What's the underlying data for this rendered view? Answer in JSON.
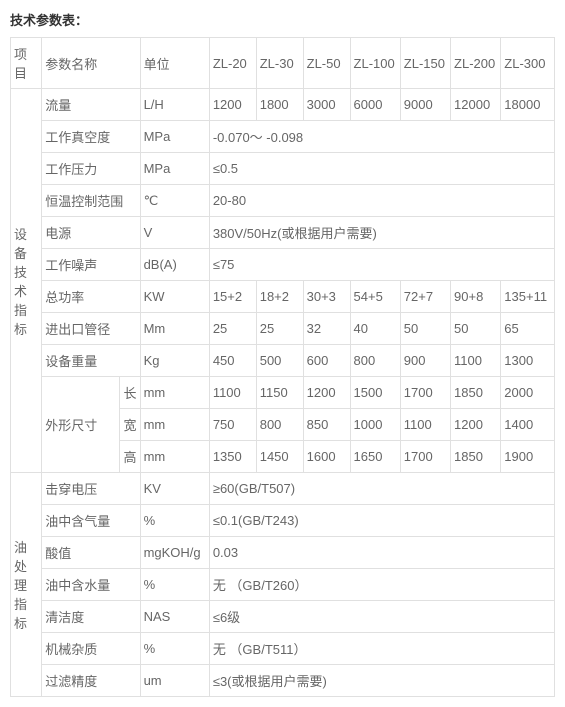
{
  "title": "技术参数表：",
  "header": {
    "project": "项目",
    "paramName": "参数名称",
    "unit": "单位",
    "models": [
      "ZL-20",
      "ZL-30",
      "ZL-50",
      "ZL-100",
      "ZL-150",
      "ZL-200",
      "ZL-300"
    ]
  },
  "group1": {
    "label": "设备技术指标",
    "rows": {
      "flow": {
        "name": "流量",
        "unit": "L/H",
        "v": [
          "1200",
          "1800",
          "3000",
          "6000",
          "9000",
          "12000",
          "18000"
        ]
      },
      "vac": {
        "name": "工作真空度",
        "unit": "MPa",
        "span": "-0.070～ -0.098"
      },
      "press": {
        "name": "工作压力",
        "unit": "MPa",
        "span": "≤0.5"
      },
      "temp": {
        "name": "恒温控制范围",
        "unit": "℃",
        "span": "20-80"
      },
      "power": {
        "name": "电源",
        "unit": "V",
        "span": "380V/50Hz(或根据用户需要)"
      },
      "noise": {
        "name": "工作噪声",
        "unit": "dB(A)",
        "span": "≤75"
      },
      "kw": {
        "name": "总功率",
        "unit": "KW",
        "v": [
          "15+2",
          "18+2",
          "30+3",
          "54+5",
          "72+7",
          "90+8",
          "135+11"
        ]
      },
      "pipe": {
        "name": "进出口管径",
        "unit": "Mm",
        "v": [
          "25",
          "25",
          "32",
          "40",
          "50",
          "50",
          "65"
        ]
      },
      "weight": {
        "name": "设备重量",
        "unit": "Kg",
        "v": [
          "450",
          "500",
          "600",
          "800",
          "900",
          "1100",
          "1300"
        ]
      },
      "dims": {
        "name": "外形尺寸",
        "L": {
          "sub": "长",
          "unit": "mm",
          "v": [
            "1100",
            "1150",
            "1200",
            "1500",
            "1700",
            "1850",
            "2000"
          ]
        },
        "W": {
          "sub": "宽",
          "unit": "mm",
          "v": [
            "750",
            "800",
            "850",
            "1000",
            "1100",
            "1200",
            "1400"
          ]
        },
        "H": {
          "sub": "高",
          "unit": "mm",
          "v": [
            "1350",
            "1450",
            "1600",
            "1650",
            "1700",
            "1850",
            "1900"
          ]
        }
      }
    }
  },
  "group2": {
    "label": "油处理指标",
    "rows": {
      "bd": {
        "name": "击穿电压",
        "unit": "KV",
        "span": "≥60(GB/T507)"
      },
      "gas": {
        "name": "油中含气量",
        "unit": "%",
        "span": "≤0.1(GB/T243)"
      },
      "acid": {
        "name": "酸值",
        "unit": "mgKOH/g",
        "span": "0.03"
      },
      "water": {
        "name": "油中含水量",
        "unit": "%",
        "span": "无 （GB/T260）"
      },
      "clean": {
        "name": "清洁度",
        "unit": "NAS",
        "span": "≤6级"
      },
      "imp": {
        "name": "机械杂质",
        "unit": "%",
        "span": "无 （GB/T511）"
      },
      "filt": {
        "name": "过滤精度",
        "unit": "um",
        "span": "≤3(或根据用户需要)"
      }
    }
  }
}
